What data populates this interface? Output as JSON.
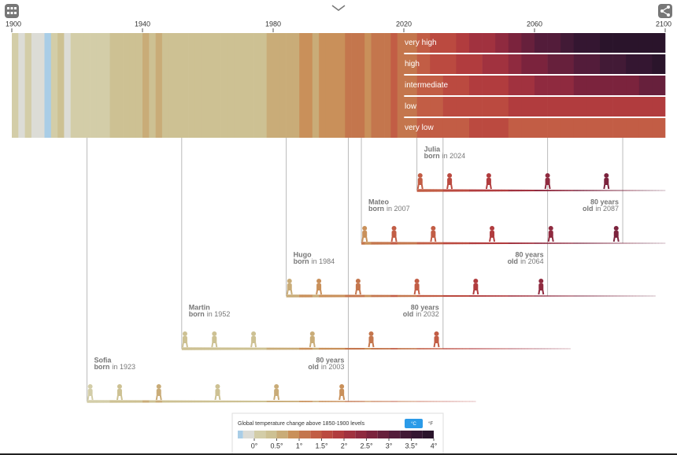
{
  "chart_data": {
    "type": "warming-stripes",
    "xlim": [
      1900,
      2100
    ],
    "xticks": [
      1900,
      1940,
      1980,
      2020,
      2060,
      2100
    ],
    "years": [
      1900,
      1902,
      1904,
      1906,
      1908,
      1910,
      1912,
      1914,
      1916,
      1918,
      1920,
      1922,
      1924,
      1926,
      1928,
      1930,
      1932,
      1934,
      1936,
      1938,
      1940,
      1942,
      1944,
      1946,
      1948,
      1950,
      1952,
      1954,
      1956,
      1958,
      1960,
      1962,
      1964,
      1966,
      1968,
      1970,
      1972,
      1974,
      1976,
      1978,
      1980,
      1982,
      1984,
      1986,
      1988,
      1990,
      1992,
      1994,
      1996,
      1998,
      2000,
      2002,
      2004,
      2006,
      2008,
      2010,
      2012,
      2014,
      2016,
      2018
    ],
    "values": [
      0.1,
      -0.2,
      0.05,
      -0.25,
      -0.25,
      -0.3,
      0.1,
      0.25,
      -0.1,
      0.05,
      0.1,
      0.05,
      0.1,
      0.2,
      0.15,
      0.3,
      0.35,
      0.3,
      0.35,
      0.45,
      0.5,
      0.4,
      0.55,
      0.35,
      0.3,
      0.25,
      0.45,
      0.3,
      0.35,
      0.45,
      0.4,
      0.45,
      0.3,
      0.4,
      0.4,
      0.45,
      0.4,
      0.35,
      0.3,
      0.5,
      0.6,
      0.55,
      0.6,
      0.65,
      0.75,
      0.8,
      0.65,
      0.75,
      0.75,
      0.95,
      0.85,
      1.0,
      1.0,
      1.0,
      0.95,
      1.1,
      1.05,
      1.1,
      1.25,
      1.2
    ],
    "scenario_years": [
      2020,
      2024,
      2028,
      2032,
      2036,
      2040,
      2044,
      2048,
      2052,
      2056,
      2060,
      2064,
      2068,
      2072,
      2076,
      2080,
      2084,
      2088,
      2092,
      2096
    ],
    "series": [
      {
        "name": "very high",
        "values": [
          1.2,
          1.35,
          1.5,
          1.65,
          1.8,
          2.0,
          2.2,
          2.4,
          2.6,
          2.8,
          3.0,
          3.2,
          3.4,
          3.55,
          3.7,
          3.85,
          4.0,
          4.15,
          4.3,
          4.4
        ]
      },
      {
        "name": "high",
        "values": [
          1.2,
          1.35,
          1.5,
          1.6,
          1.75,
          1.9,
          2.05,
          2.2,
          2.35,
          2.5,
          2.65,
          2.8,
          2.95,
          3.1,
          3.2,
          3.35,
          3.45,
          3.55,
          3.65,
          3.75
        ]
      },
      {
        "name": "intermediate",
        "values": [
          1.2,
          1.3,
          1.45,
          1.55,
          1.65,
          1.75,
          1.85,
          1.95,
          2.05,
          2.15,
          2.25,
          2.35,
          2.45,
          2.5,
          2.55,
          2.6,
          2.65,
          2.7,
          2.75,
          2.8
        ]
      },
      {
        "name": "low",
        "values": [
          1.2,
          1.3,
          1.4,
          1.5,
          1.55,
          1.6,
          1.65,
          1.7,
          1.75,
          1.8,
          1.8,
          1.85,
          1.85,
          1.85,
          1.85,
          1.85,
          1.85,
          1.85,
          1.85,
          1.8
        ]
      },
      {
        "name": "very low",
        "values": [
          1.2,
          1.3,
          1.35,
          1.4,
          1.45,
          1.5,
          1.5,
          1.5,
          1.45,
          1.45,
          1.45,
          1.4,
          1.4,
          1.4,
          1.4,
          1.35,
          1.35,
          1.35,
          1.35,
          1.3
        ]
      }
    ],
    "people": [
      {
        "name": "Sofia",
        "born_word": "born",
        "born": {
          "value": 1923,
          "label": "in 1923"
        },
        "lifeline_end": 2042,
        "eighty": {
          "title": "80 years",
          "word": "old",
          "year": {
            "value": 2003,
            "label": "in 2003"
          }
        }
      },
      {
        "name": "Martin",
        "born_word": "born",
        "born": {
          "value": 1952,
          "label": "in 1952"
        },
        "lifeline_end": 2071,
        "eighty": {
          "title": "80 years",
          "word": "old",
          "year": {
            "value": 2032,
            "label": "in 2032"
          }
        }
      },
      {
        "name": "Hugo",
        "born_word": "born",
        "born": {
          "value": 1984,
          "label": "in 1984"
        },
        "lifeline_end": 2097,
        "eighty": {
          "title": "80 years",
          "word": "old",
          "year": {
            "value": 2064,
            "label": "in 2064"
          }
        }
      },
      {
        "name": "Mateo",
        "born_word": "born",
        "born": {
          "value": 2007,
          "label": "in 2007"
        },
        "lifeline_end": 2100,
        "eighty": {
          "title": "80 years",
          "word": "old",
          "year": {
            "value": 2087,
            "label": "in 2087"
          }
        }
      },
      {
        "name": "Julia",
        "born_word": "born",
        "born": {
          "value": 2024,
          "label": "in 2024"
        },
        "lifeline_end": 2100
      }
    ],
    "legend": {
      "title": "Global temperature change above 1850-1900 levels",
      "unit_c": "°C",
      "unit_f": "°F",
      "ticks": [
        {
          "value": 0,
          "label": "0°"
        },
        {
          "value": 0.5,
          "label": "0.5°"
        },
        {
          "value": 1,
          "label": "1°"
        },
        {
          "value": 1.5,
          "label": "1.5°"
        },
        {
          "value": 2,
          "label": "2°"
        },
        {
          "value": 2.5,
          "label": "2.5°"
        },
        {
          "value": 3,
          "label": "3°"
        },
        {
          "value": 3.5,
          "label": "3.5°"
        },
        {
          "value": 4,
          "label": "4°"
        }
      ],
      "color_stops": [
        {
          "t": -0.375,
          "color": "#a9cde6"
        },
        {
          "t": -0.125,
          "color": "#dcdcd6"
        },
        {
          "t": 0.125,
          "color": "#d3cda8"
        },
        {
          "t": 0.375,
          "color": "#cdc193"
        },
        {
          "t": 0.625,
          "color": "#c9ac78"
        },
        {
          "t": 0.875,
          "color": "#c9905a"
        },
        {
          "t": 1.125,
          "color": "#c4764d"
        },
        {
          "t": 1.375,
          "color": "#c25d45"
        },
        {
          "t": 1.625,
          "color": "#bb4a40"
        },
        {
          "t": 1.875,
          "color": "#b13c3e"
        },
        {
          "t": 2.125,
          "color": "#a1323f"
        },
        {
          "t": 2.375,
          "color": "#8f2a3f"
        },
        {
          "t": 2.625,
          "color": "#7b233d"
        },
        {
          "t": 2.875,
          "color": "#67203c"
        },
        {
          "t": 3.125,
          "color": "#531c3a"
        },
        {
          "t": 3.375,
          "color": "#421a36"
        },
        {
          "t": 3.625,
          "color": "#341631"
        },
        {
          "t": 3.875,
          "color": "#2a142b"
        }
      ]
    }
  }
}
